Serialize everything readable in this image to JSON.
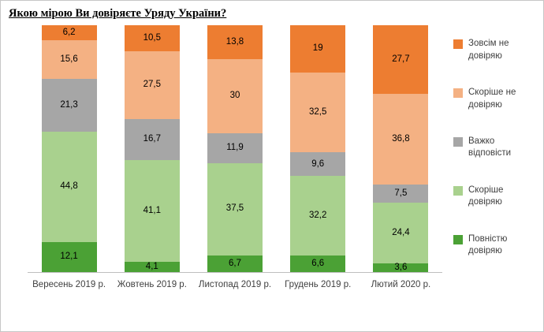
{
  "chart_data": {
    "type": "bar",
    "stacked": true,
    "title": "Якою мірою Ви довіряєте Уряду України?",
    "categories": [
      "Вересень 2019 р.",
      "Жовтень 2019 р.",
      "Листопад 2019 р.",
      "Грудень 2019 р.",
      "Лютий 2020 р."
    ],
    "series": [
      {
        "name": "Зовсім не довіряю",
        "color": "#ED7D31",
        "values": [
          6.2,
          10.5,
          13.8,
          19,
          27.7
        ]
      },
      {
        "name": "Скоріше  не довіряю",
        "color": "#F4B183",
        "values": [
          15.6,
          27.5,
          30,
          32.5,
          36.8
        ]
      },
      {
        "name": "Важко відповісти",
        "color": "#A6A6A6",
        "values": [
          21.3,
          16.7,
          11.9,
          9.6,
          7.5
        ]
      },
      {
        "name": "Скоріше довіряю",
        "color": "#A9D18E",
        "values": [
          44.8,
          41.1,
          37.5,
          32.2,
          24.4
        ]
      },
      {
        "name": "Повністю довіряю",
        "color": "#4BA135",
        "values": [
          12.1,
          4.1,
          6.7,
          6.6,
          3.6
        ]
      }
    ],
    "ylim": [
      0,
      100
    ],
    "grid": false,
    "legend_position": "right",
    "value_label_decimal_separator": ","
  }
}
